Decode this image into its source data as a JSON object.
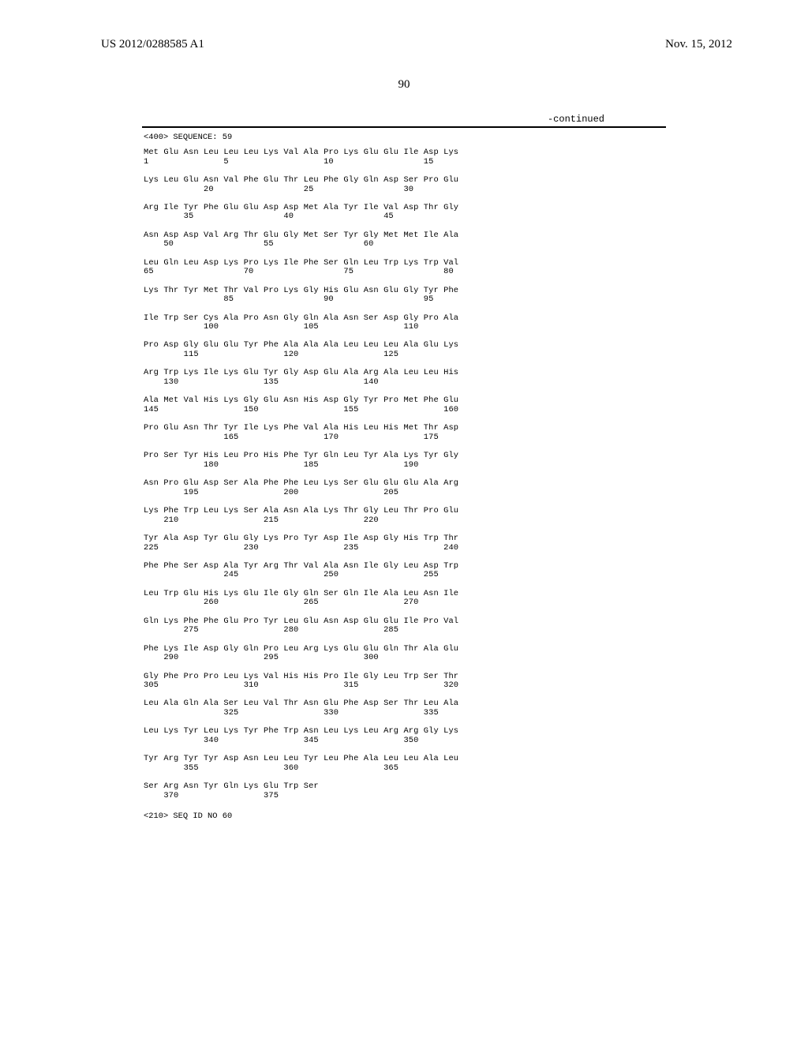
{
  "header": {
    "pub_number": "US 2012/0288585 A1",
    "pub_date": "Nov. 15, 2012"
  },
  "page_number": "90",
  "continued_label": "-continued",
  "sequence_header": "<400> SEQUENCE: 59",
  "sequence_footer": "<210> SEQ ID NO 60",
  "sequence_lines": [
    "Met Glu Asn Leu Leu Leu Lys Val Ala Pro Lys Glu Glu Ile Asp Lys",
    "1               5                   10                  15",
    "",
    "Lys Leu Glu Asn Val Phe Glu Thr Leu Phe Gly Gln Asp Ser Pro Glu",
    "            20                  25                  30",
    "",
    "Arg Ile Tyr Phe Glu Glu Asp Asp Met Ala Tyr Ile Val Asp Thr Gly",
    "        35                  40                  45",
    "",
    "Asn Asp Asp Val Arg Thr Glu Gly Met Ser Tyr Gly Met Met Ile Ala",
    "    50                  55                  60",
    "",
    "Leu Gln Leu Asp Lys Pro Lys Ile Phe Ser Gln Leu Trp Lys Trp Val",
    "65                  70                  75                  80",
    "",
    "Lys Thr Tyr Met Thr Val Pro Lys Gly His Glu Asn Glu Gly Tyr Phe",
    "                85                  90                  95",
    "",
    "Ile Trp Ser Cys Ala Pro Asn Gly Gln Ala Asn Ser Asp Gly Pro Ala",
    "            100                 105                 110",
    "",
    "Pro Asp Gly Glu Glu Tyr Phe Ala Ala Ala Leu Leu Leu Ala Glu Lys",
    "        115                 120                 125",
    "",
    "Arg Trp Lys Ile Lys Glu Tyr Gly Asp Glu Ala Arg Ala Leu Leu His",
    "    130                 135                 140",
    "",
    "Ala Met Val His Lys Gly Glu Asn His Asp Gly Tyr Pro Met Phe Glu",
    "145                 150                 155                 160",
    "",
    "Pro Glu Asn Thr Tyr Ile Lys Phe Val Ala His Leu His Met Thr Asp",
    "                165                 170                 175",
    "",
    "Pro Ser Tyr His Leu Pro His Phe Tyr Gln Leu Tyr Ala Lys Tyr Gly",
    "            180                 185                 190",
    "",
    "Asn Pro Glu Asp Ser Ala Phe Phe Leu Lys Ser Glu Glu Glu Ala Arg",
    "        195                 200                 205",
    "",
    "Lys Phe Trp Leu Lys Ser Ala Asn Ala Lys Thr Gly Leu Thr Pro Glu",
    "    210                 215                 220",
    "",
    "Tyr Ala Asp Tyr Glu Gly Lys Pro Tyr Asp Ile Asp Gly His Trp Thr",
    "225                 230                 235                 240",
    "",
    "Phe Phe Ser Asp Ala Tyr Arg Thr Val Ala Asn Ile Gly Leu Asp Trp",
    "                245                 250                 255",
    "",
    "Leu Trp Glu His Lys Glu Ile Gly Gln Ser Gln Ile Ala Leu Asn Ile",
    "            260                 265                 270",
    "",
    "Gln Lys Phe Phe Glu Pro Tyr Leu Glu Asn Asp Glu Glu Ile Pro Val",
    "        275                 280                 285",
    "",
    "Phe Lys Ile Asp Gly Gln Pro Leu Arg Lys Glu Glu Gln Thr Ala Glu",
    "    290                 295                 300",
    "",
    "Gly Phe Pro Pro Leu Lys Val His His Pro Ile Gly Leu Trp Ser Thr",
    "305                 310                 315                 320",
    "",
    "Leu Ala Gln Ala Ser Leu Val Thr Asn Glu Phe Asp Ser Thr Leu Ala",
    "                325                 330                 335",
    "",
    "Leu Lys Tyr Leu Lys Tyr Phe Trp Asn Leu Lys Leu Arg Arg Gly Lys",
    "            340                 345                 350",
    "",
    "Tyr Arg Tyr Tyr Asp Asn Leu Leu Tyr Leu Phe Ala Leu Leu Ala Leu",
    "        355                 360                 365",
    "",
    "Ser Arg Asn Tyr Gln Lys Glu Trp Ser",
    "    370                 375"
  ]
}
